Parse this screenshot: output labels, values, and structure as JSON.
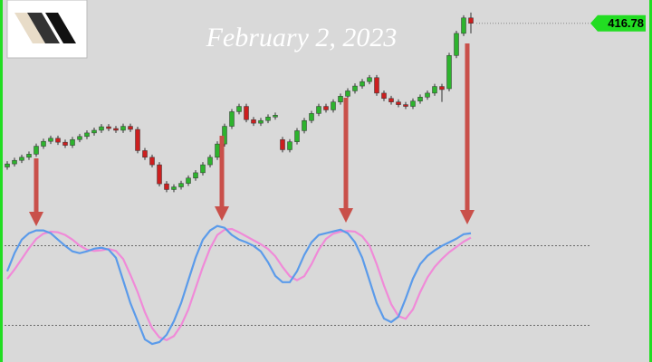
{
  "chart_data": [
    {
      "type": "candlestick",
      "title": "February 2, 2023",
      "ylim": [
        375,
        420
      ],
      "last_price": 416.78,
      "last_price_color": "#22dd22",
      "bull_color": "#2db32d",
      "bear_color": "#cc1f1f",
      "open": [
        384.3,
        385.0,
        385.8,
        386.5,
        387.2,
        389.0,
        390.1,
        390.8,
        389.9,
        389.2,
        390.5,
        391.2,
        392.0,
        392.6,
        393.4,
        393.0,
        392.6,
        393.5,
        392.8,
        388.0,
        386.5,
        384.8,
        380.5,
        379.2,
        379.8,
        380.6,
        381.8,
        383.0,
        384.8,
        386.5,
        389.5,
        393.5,
        396.8,
        398.0,
        395.0,
        394.2,
        394.8,
        395.6,
        390.5,
        388.2,
        390.0,
        392.5,
        394.8,
        396.4,
        398.0,
        397.2,
        399.0,
        400.3,
        401.5,
        402.6,
        403.6,
        404.5,
        401.0,
        399.8,
        399.0,
        398.4,
        398.0,
        399.2,
        400.1,
        401.0,
        402.5,
        402.0,
        409.5,
        414.5,
        418.0
      ],
      "high": [
        385.6,
        386.4,
        387.1,
        387.8,
        389.6,
        390.7,
        391.4,
        391.4,
        390.5,
        391.1,
        391.8,
        392.6,
        393.2,
        394.0,
        394.0,
        393.6,
        394.1,
        394.1,
        393.4,
        388.6,
        387.1,
        385.4,
        381.1,
        380.4,
        381.2,
        382.4,
        383.6,
        385.4,
        387.1,
        390.1,
        394.1,
        397.4,
        398.6,
        398.6,
        395.6,
        395.4,
        396.2,
        396.6,
        391.1,
        390.6,
        393.1,
        395.4,
        397.0,
        398.6,
        398.6,
        399.6,
        400.9,
        402.1,
        403.2,
        404.2,
        405.1,
        405.1,
        401.6,
        400.4,
        399.6,
        399.0,
        399.8,
        400.7,
        401.6,
        403.1,
        403.1,
        410.1,
        415.1,
        418.6,
        419.2
      ],
      "low": [
        383.7,
        384.4,
        385.2,
        385.9,
        386.6,
        388.4,
        389.5,
        389.3,
        388.6,
        388.6,
        389.9,
        390.6,
        391.4,
        392.0,
        392.4,
        392.0,
        392.0,
        392.2,
        387.4,
        385.9,
        384.2,
        379.9,
        378.6,
        378.6,
        379.2,
        380.0,
        381.2,
        382.4,
        384.2,
        385.9,
        388.9,
        392.9,
        396.2,
        394.4,
        393.6,
        393.6,
        394.2,
        395.0,
        387.6,
        387.6,
        389.4,
        391.9,
        394.2,
        395.8,
        396.6,
        396.6,
        398.4,
        399.7,
        400.9,
        402.0,
        403.0,
        400.4,
        399.2,
        398.4,
        397.8,
        397.4,
        397.4,
        398.6,
        399.5,
        400.4,
        399.0,
        401.4,
        408.9,
        413.9,
        414.5
      ],
      "close": [
        385.0,
        385.8,
        386.5,
        387.2,
        389.0,
        390.1,
        390.8,
        389.9,
        389.2,
        390.5,
        391.2,
        392.0,
        392.6,
        393.4,
        393.0,
        392.6,
        393.5,
        392.8,
        388.0,
        386.5,
        384.8,
        380.5,
        379.2,
        379.8,
        380.6,
        381.8,
        383.0,
        384.8,
        386.5,
        389.5,
        393.5,
        396.8,
        398.0,
        395.0,
        394.2,
        394.8,
        395.6,
        396.0,
        388.2,
        390.0,
        392.5,
        394.8,
        396.4,
        398.0,
        397.2,
        399.0,
        400.3,
        401.5,
        402.6,
        403.6,
        404.5,
        401.0,
        399.8,
        399.0,
        398.4,
        398.0,
        399.2,
        400.1,
        401.0,
        402.5,
        401.8,
        409.5,
        414.5,
        418.0,
        416.78
      ]
    },
    {
      "type": "line",
      "ylim": [
        0,
        100
      ],
      "levels": [
        80,
        20
      ],
      "series": [
        {
          "color": "#5b9bea",
          "values": [
            60.7,
            74.3,
            84.5,
            89.3,
            91.4,
            91.4,
            89.3,
            84.5,
            79.8,
            75.7,
            74.3,
            75.7,
            77.7,
            78.4,
            77.0,
            70.9,
            53.9,
            36.8,
            23.2,
            9.5,
            6.1,
            7.5,
            13.0,
            23.2,
            36.8,
            53.9,
            70.9,
            84.5,
            91.4,
            94.8,
            93.4,
            88.0,
            84.5,
            82.5,
            79.8,
            75.7,
            67.5,
            57.3,
            52.5,
            52.5,
            60.7,
            73.0,
            82.5,
            88.0,
            89.3,
            90.7,
            92.0,
            89.3,
            82.5,
            70.9,
            53.9,
            36.8,
            25.2,
            22.5,
            26.6,
            40.2,
            55.2,
            66.1,
            72.3,
            76.4,
            79.8,
            82.5,
            85.2,
            88.6,
            89.3
          ]
        },
        {
          "color": "#f08ad8",
          "values": [
            55.0,
            62.0,
            70.0,
            78.0,
            85.0,
            89.0,
            90.5,
            90.0,
            88.0,
            84.5,
            80.0,
            77.0,
            76.0,
            76.5,
            77.5,
            76.0,
            70.0,
            58.0,
            45.0,
            30.0,
            18.0,
            11.0,
            9.0,
            12.0,
            20.0,
            32.0,
            48.0,
            64.0,
            78.0,
            88.0,
            92.0,
            92.5,
            90.0,
            87.0,
            84.0,
            81.0,
            77.5,
            72.0,
            64.0,
            57.0,
            54.0,
            57.0,
            66.0,
            77.0,
            85.0,
            89.0,
            90.5,
            91.0,
            90.5,
            87.0,
            80.0,
            66.0,
            50.0,
            36.0,
            27.0,
            25.0,
            32.0,
            45.0,
            56.0,
            64.0,
            70.0,
            75.0,
            79.0,
            83.0,
            86.0
          ]
        }
      ]
    }
  ]
}
